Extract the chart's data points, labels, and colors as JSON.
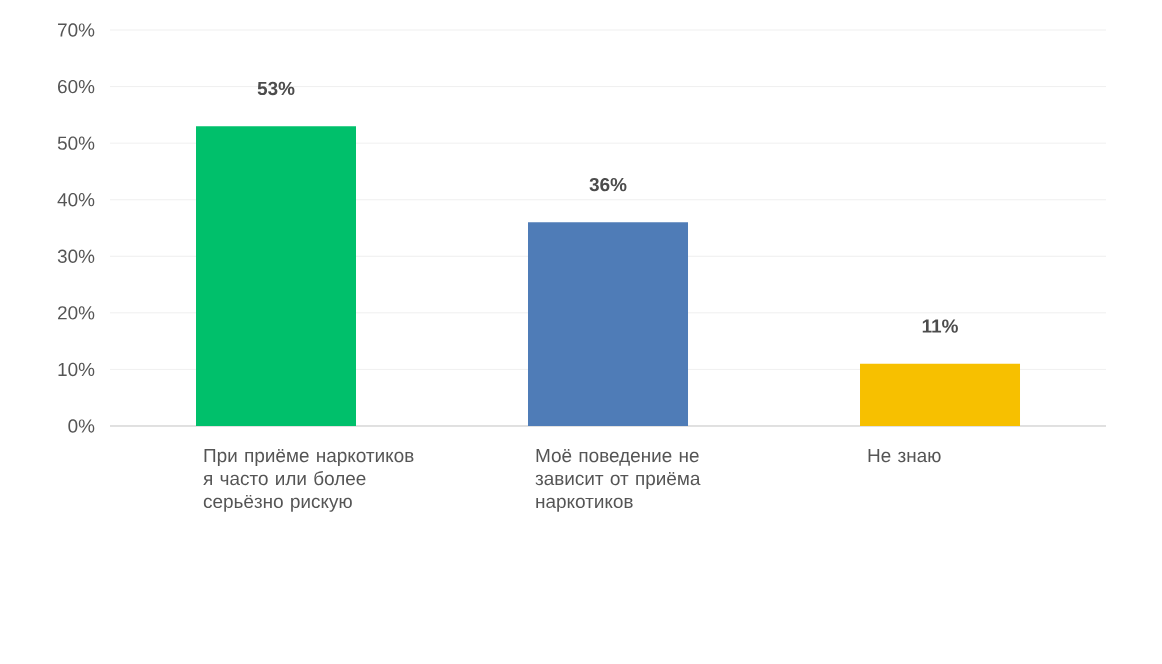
{
  "chart_data": {
    "type": "bar",
    "categories": [
      "При приёме наркотиков я часто или более серьёзно рискую",
      "Моё поведение не зависит от приёма наркотиков",
      "Не знаю"
    ],
    "values": [
      53,
      36,
      11
    ],
    "colors": [
      "#00c06b",
      "#4f7cb7",
      "#f7c000"
    ],
    "value_labels": [
      "53%",
      "36%",
      "11%"
    ],
    "ylim": [
      0,
      70
    ],
    "yticks": [
      {
        "value": 0,
        "label": "0%"
      },
      {
        "value": 10,
        "label": "10%"
      },
      {
        "value": 20,
        "label": "20%"
      },
      {
        "value": 30,
        "label": "30%"
      },
      {
        "value": 40,
        "label": "40%"
      },
      {
        "value": 50,
        "label": "50%"
      },
      {
        "value": 60,
        "label": "60%"
      },
      {
        "value": 70,
        "label": "70%"
      }
    ],
    "grid": "y"
  }
}
